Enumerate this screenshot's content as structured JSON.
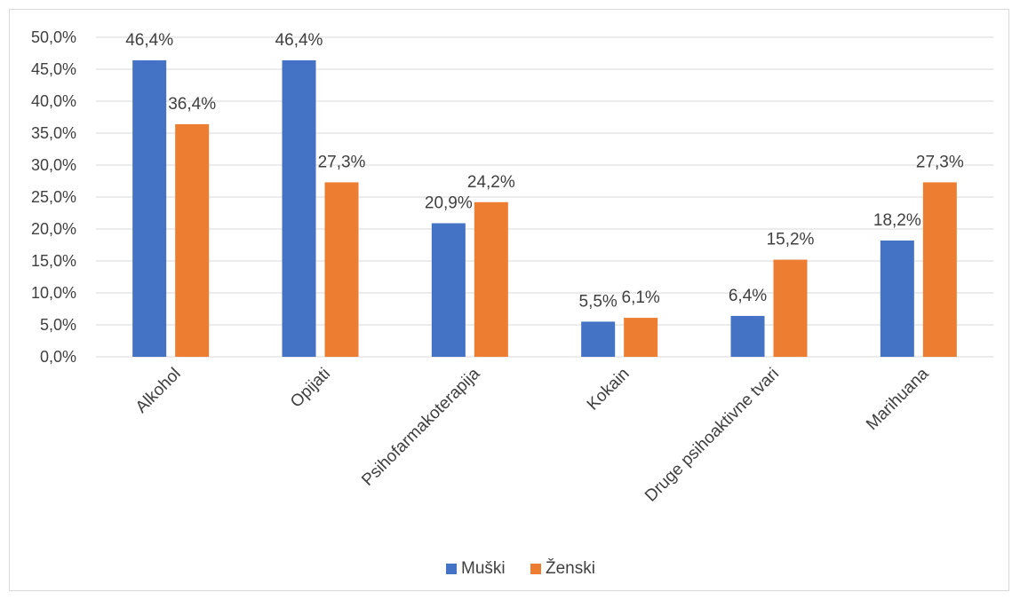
{
  "chart_data": {
    "type": "bar",
    "categories": [
      "Alkohol",
      "Opijati",
      "Psihofarmakoterapija",
      "Kokain",
      "Druge psihoaktivne tvari",
      "Marihuana"
    ],
    "series": [
      {
        "name": "Muški",
        "color": "#4472c4",
        "values": [
          46.4,
          46.4,
          20.9,
          5.5,
          6.4,
          18.2
        ],
        "labels": [
          "46,4%",
          "46,4%",
          "20,9%",
          "5,5%",
          "6,4%",
          "18,2%"
        ]
      },
      {
        "name": "Ženski",
        "color": "#ed7d31",
        "values": [
          36.4,
          27.3,
          24.2,
          6.1,
          15.2,
          27.3
        ],
        "labels": [
          "36,4%",
          "27,3%",
          "24,2%",
          "6,1%",
          "15,2%",
          "27,3%"
        ]
      }
    ],
    "ylim": [
      0,
      50
    ],
    "yticks": [
      "0,0%",
      "5,0%",
      "10,0%",
      "15,0%",
      "20,0%",
      "25,0%",
      "30,0%",
      "35,0%",
      "40,0%",
      "45,0%",
      "50,0%"
    ],
    "grid": true,
    "legend_position": "bottom"
  }
}
